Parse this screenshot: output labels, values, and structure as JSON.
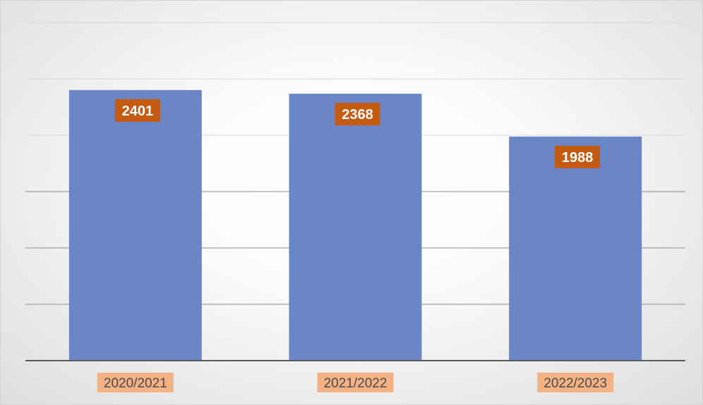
{
  "chart_data": {
    "type": "bar",
    "categories": [
      "2020/2021",
      "2021/2022",
      "2022/2023"
    ],
    "values": [
      2401,
      2368,
      1988
    ],
    "title": "",
    "xlabel": "",
    "ylabel": "",
    "ylim": [
      0,
      3000
    ],
    "grid": true,
    "legend": "none",
    "colors": {
      "bar": "#6a86c6",
      "label_bg": "#c55a11",
      "label_text": "#ffffff",
      "grid": "#d9d9d9",
      "axis": "#595959"
    }
  }
}
